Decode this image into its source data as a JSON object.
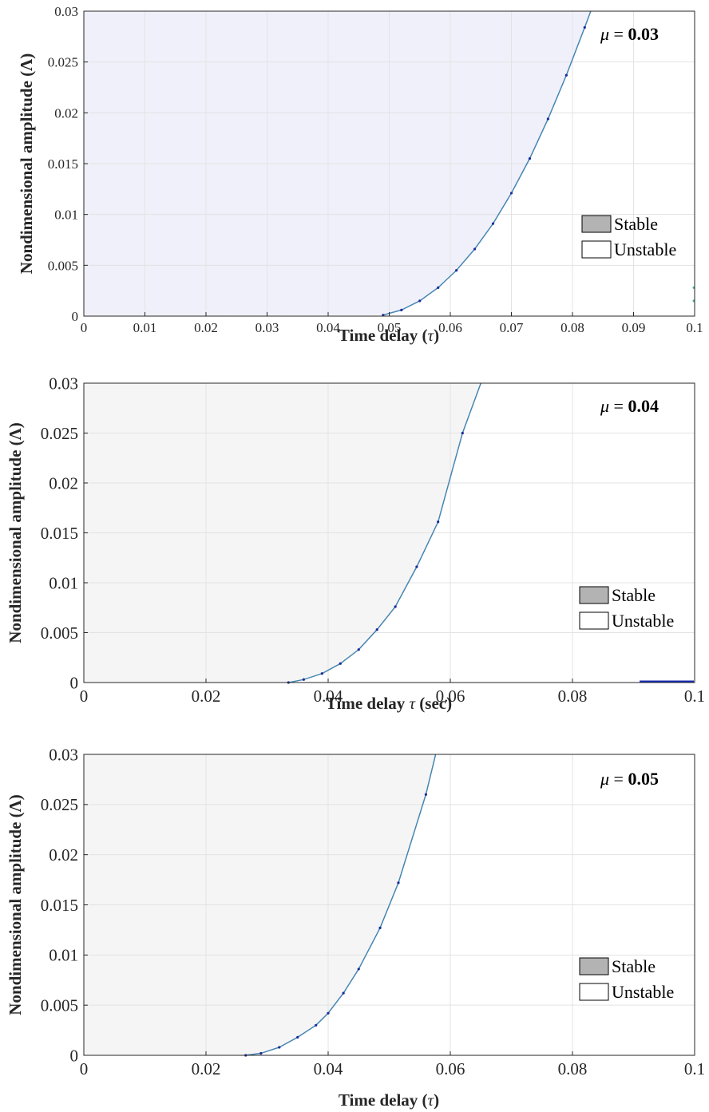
{
  "chart_data": [
    {
      "type": "area",
      "annotation": {
        "prefix": "μ",
        "value": "0.03"
      },
      "xlabel": {
        "text": "Time delay (",
        "symbol": "τ",
        "suffix": ")"
      },
      "ylabel": "Nondimensional amplitude (Λ)",
      "xlim": [
        0,
        0.1
      ],
      "ylim": [
        0,
        0.03
      ],
      "x_ticks": [
        "0",
        "0.01",
        "0.02",
        "0.03",
        "0.04",
        "0.05",
        "0.06",
        "0.07",
        "0.08",
        "0.09",
        "0.1"
      ],
      "y_ticks": [
        "0",
        "0.005",
        "0.01",
        "0.015",
        "0.02",
        "0.025",
        "0.03"
      ],
      "grid": true,
      "fill_color": "#f0f0fb",
      "legend": {
        "position": "right",
        "items": [
          {
            "label": "Stable",
            "color": "#b3b3b3"
          },
          {
            "label": "Unstable",
            "color": "#ffffff"
          }
        ]
      },
      "boundary": {
        "x": [
          0.049,
          0.052,
          0.055,
          0.058,
          0.061,
          0.064,
          0.067,
          0.07,
          0.073,
          0.076,
          0.079,
          0.082,
          0.0833
        ],
        "y": [
          0.0001,
          0.0006,
          0.0015,
          0.0028,
          0.0045,
          0.0066,
          0.0091,
          0.0121,
          0.0155,
          0.0194,
          0.0237,
          0.0284,
          0.0305
        ]
      },
      "extra_points": {
        "x": [
          0.1,
          0.1
        ],
        "y": [
          0.0015,
          0.0028
        ]
      }
    },
    {
      "type": "area",
      "annotation": {
        "prefix": "μ",
        "value": "0.04"
      },
      "xlabel": {
        "text": "Time delay ",
        "symbol": "τ",
        "suffix": " (sec)"
      },
      "ylabel": "Nondimensional amplitude (Λ)",
      "xlim": [
        0,
        0.1
      ],
      "ylim": [
        0,
        0.03
      ],
      "x_ticks": [
        "0",
        "0.02",
        "0.04",
        "0.06",
        "0.08",
        "0.1"
      ],
      "y_ticks": [
        "0",
        "0.005",
        "0.01",
        "0.015",
        "0.02",
        "0.025",
        "0.03"
      ],
      "grid": true,
      "fill_color": "#f5f5f5",
      "legend": {
        "position": "right",
        "items": [
          {
            "label": "Stable",
            "color": "#b3b3b3"
          },
          {
            "label": "Unstable",
            "color": "#ffffff"
          }
        ]
      },
      "boundary": {
        "x": [
          0.0335,
          0.036,
          0.039,
          0.042,
          0.045,
          0.048,
          0.051,
          0.0545,
          0.058,
          0.062,
          0.0653
        ],
        "y": [
          0.0,
          0.0003,
          0.0009,
          0.0019,
          0.0033,
          0.0053,
          0.0076,
          0.0116,
          0.0161,
          0.025,
          0.0305
        ]
      },
      "extra_segment": {
        "x": [
          0.091,
          0.1
        ],
        "y": [
          0.0,
          0.0
        ]
      }
    },
    {
      "type": "area",
      "annotation": {
        "prefix": "μ",
        "value": "0.05"
      },
      "xlabel": {
        "text": "Time delay (",
        "symbol": "τ",
        "suffix": ")"
      },
      "ylabel": "Nondimensional amplitude (Λ)",
      "xlim": [
        0,
        0.1
      ],
      "ylim": [
        0,
        0.03
      ],
      "x_ticks": [
        "0",
        "0.02",
        "0.04",
        "0.06",
        "0.08",
        "0.1"
      ],
      "y_ticks": [
        "0",
        "0.005",
        "0.01",
        "0.015",
        "0.02",
        "0.025",
        "0.03"
      ],
      "grid": true,
      "fill_color": "#f5f5f5",
      "legend": {
        "position": "right",
        "items": [
          {
            "label": "Stable",
            "color": "#b3b3b3"
          },
          {
            "label": "Unstable",
            "color": "#ffffff"
          }
        ]
      },
      "boundary": {
        "x": [
          0.0265,
          0.029,
          0.032,
          0.035,
          0.038,
          0.04,
          0.0425,
          0.045,
          0.0485,
          0.0515,
          0.056,
          0.0578
        ],
        "y": [
          0.0,
          0.0002,
          0.0008,
          0.0018,
          0.003,
          0.0042,
          0.0062,
          0.0086,
          0.0127,
          0.0172,
          0.026,
          0.0305
        ]
      }
    }
  ]
}
